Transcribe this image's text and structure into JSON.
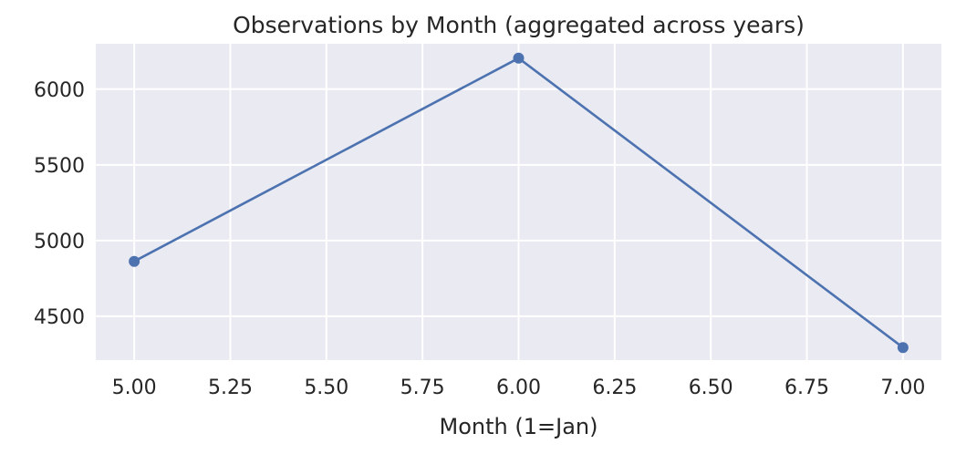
{
  "chart_data": {
    "type": "line",
    "title": "Observations by Month (aggregated across years)",
    "xlabel": "Month (1=Jan)",
    "ylabel": "",
    "x": [
      5,
      6,
      7
    ],
    "series": [
      {
        "values": [
          4862,
          6205,
          4293
        ],
        "color": "#4c72b0"
      }
    ],
    "xlim": [
      4.9,
      7.1
    ],
    "ylim": [
      4210,
      6300
    ],
    "xticks": [
      5.0,
      5.25,
      5.5,
      5.75,
      6.0,
      6.25,
      6.5,
      6.75,
      7.0
    ],
    "xtick_labels": [
      "5.00",
      "5.25",
      "5.50",
      "5.75",
      "6.00",
      "6.25",
      "6.50",
      "6.75",
      "7.00"
    ],
    "yticks": [
      4500,
      5000,
      5500,
      6000
    ],
    "ytick_labels": [
      "4500",
      "5000",
      "5500",
      "6000"
    ],
    "grid": true,
    "background": "#eaeaf2",
    "grid_color": "#ffffff"
  }
}
